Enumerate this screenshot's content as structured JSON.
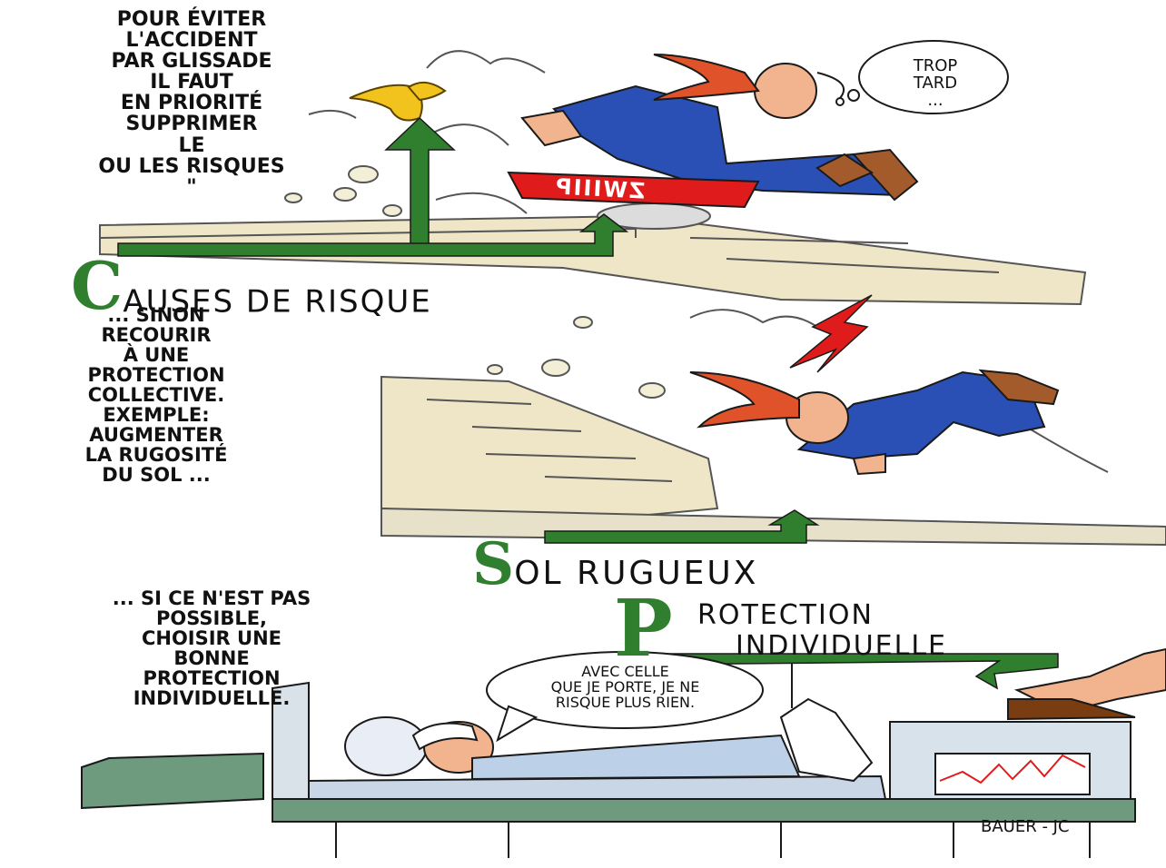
{
  "texts": {
    "intro": "POUR ÉVITER\nL'ACCIDENT\nPAR GLISSADE\nIL FAUT\nEN PRIORITÉ\nSUPPRIMER\nLE\nOU LES RISQUES\n\"",
    "second": "... SINON\nRECOURIR\nÀ UNE\nPROTECTION\nCOLLECTIVE.\nEXEMPLE:\nAUGMENTER\nLA RUGOSITÉ\nDU SOL ...",
    "third": "... SI CE N'EST PAS\nPOSSIBLE,\nCHOISIR UNE\nBONNE\nPROTECTION\nINDIVIDUELLE."
  },
  "bubbles": {
    "trop_tard": "TROP\nTARD\n...",
    "patient": "AVEC CELLE\nQUE JE PORTE, JE NE\nRISQUE PLUS RIEN."
  },
  "labels": {
    "causes_letter": "C",
    "causes_rest": "AUSES DE RISQUE",
    "sol_letter": "S",
    "sol_rest": "OL RUGUEUX",
    "protection_letter": "P",
    "protection_line1": "ROTECTION",
    "protection_line2": "INDIVIDUELLE"
  },
  "sfx": "ZWIIIP",
  "signature": "BAUER - JC",
  "colors": {
    "green": "#2f7f2f",
    "blue": "#2a4fb5",
    "hair": "#e0522a",
    "red": "#e01b1b",
    "stone": "#efe6c8",
    "bed": "#6e9a7e"
  }
}
